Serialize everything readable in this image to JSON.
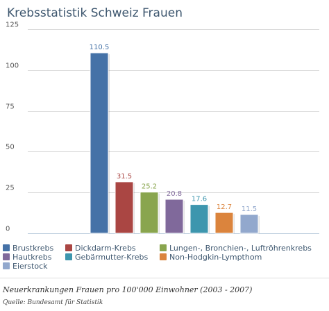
{
  "chart_data": {
    "type": "bar",
    "title": "Krebsstatistik Schweiz Frauen",
    "categories": [
      "Brustkrebs",
      "Dickdarm-Krebs",
      "Lungen-, Bronchien-, Luftröhrenkrebs",
      "Hautkrebs",
      "Gebärmutter-Krebs",
      "Non-Hodgkin-Lympthom",
      "Eierstock"
    ],
    "values": [
      110.5,
      31.5,
      25.2,
      20.8,
      17.6,
      12.7,
      11.5
    ],
    "value_labels": [
      "110.5",
      "31.5",
      "25.2",
      "20.8",
      "17.6",
      "12.7",
      "11.5"
    ],
    "colors": [
      "#4572a7",
      "#aa4643",
      "#89a54e",
      "#80699b",
      "#3d96ae",
      "#db843d",
      "#92a8cd"
    ],
    "ylim": [
      0,
      125
    ],
    "yticks": [
      0,
      25,
      50,
      75,
      100,
      125
    ],
    "ytick_labels": [
      "0",
      "25",
      "50",
      "75",
      "100",
      "125"
    ],
    "grid": true,
    "legend_position": "bottom",
    "xlabel": "",
    "ylabel": ""
  },
  "footer": {
    "subtitle": "Neuerkrankungen Frauen pro 100'000 Einwohner (2003 - 2007)",
    "source": "Quelle: Bundesamt für Statistik"
  }
}
